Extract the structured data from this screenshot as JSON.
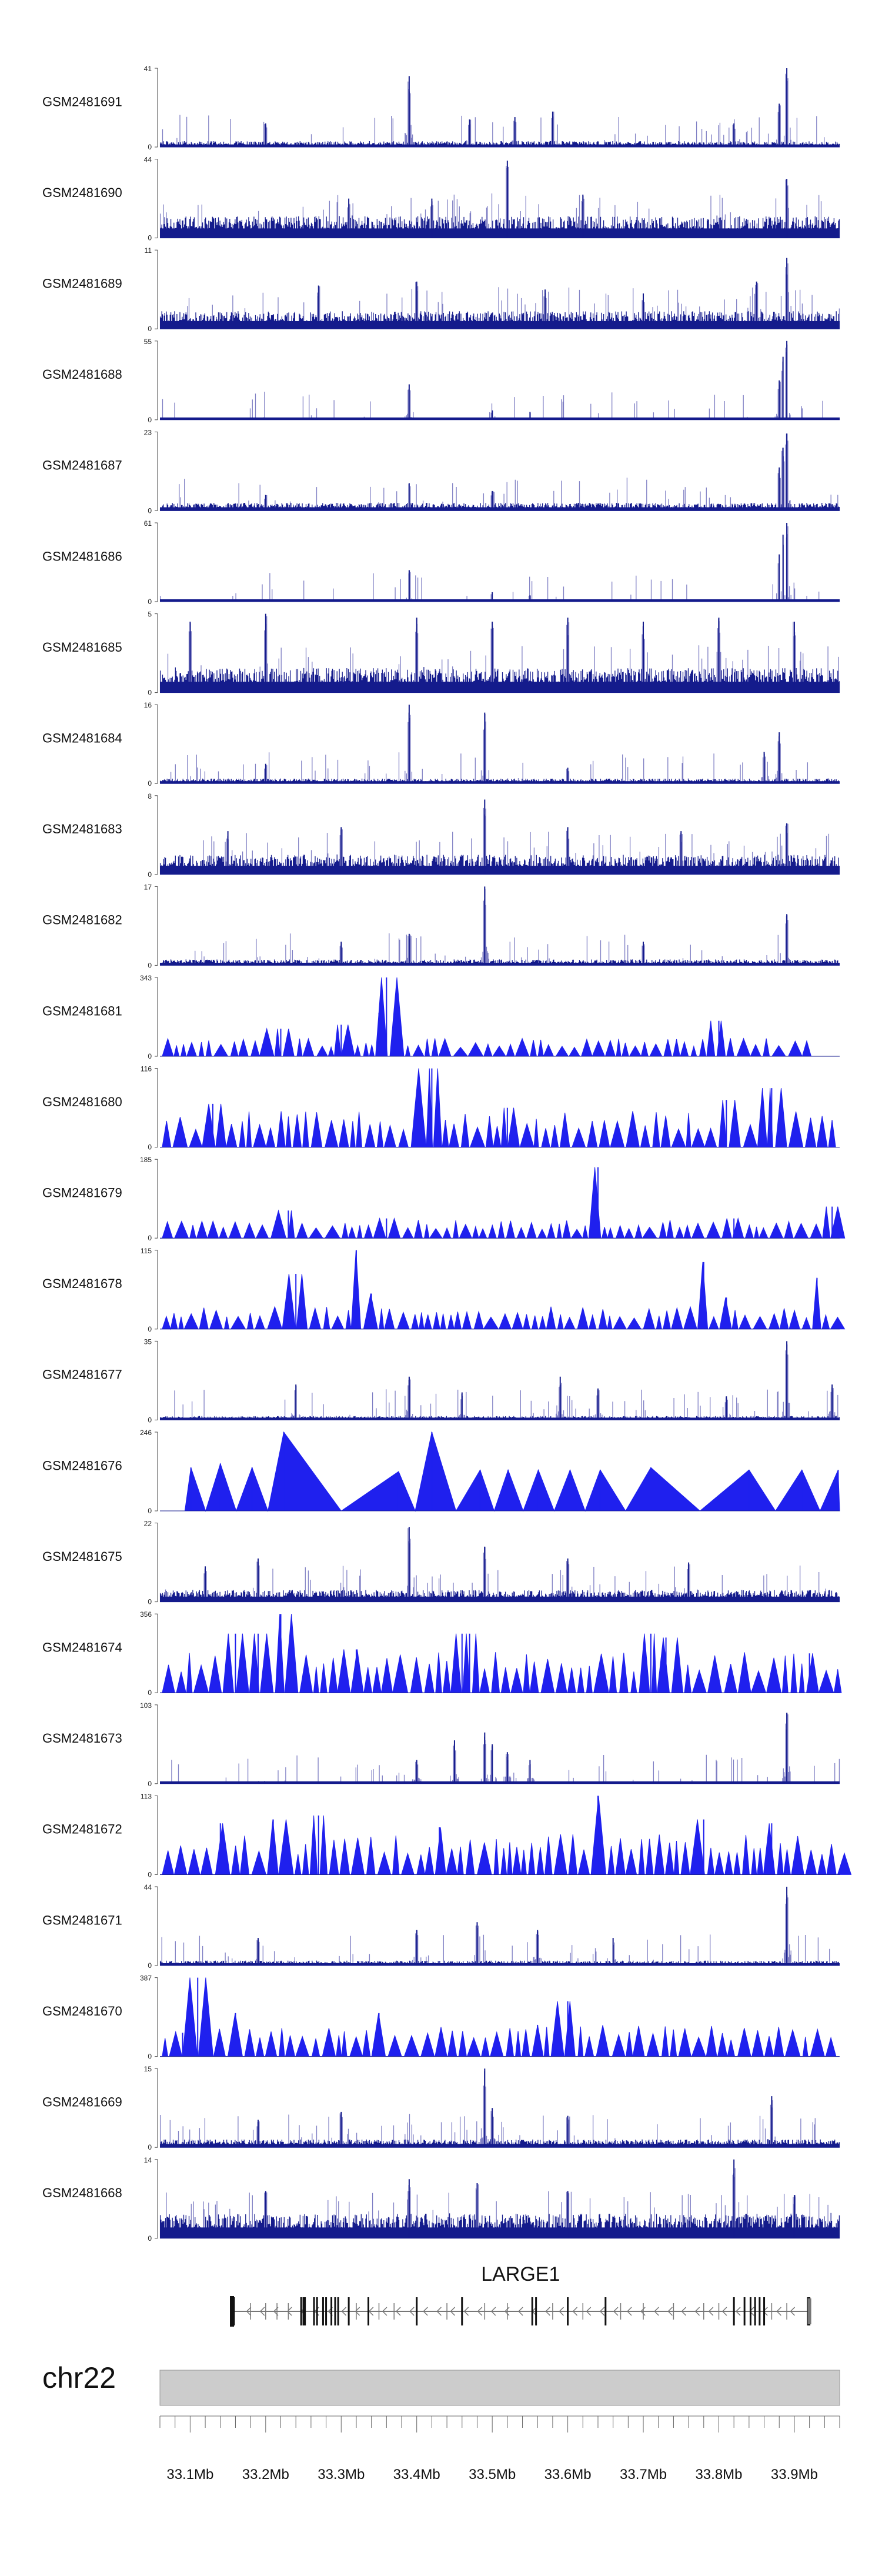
{
  "chart_data": {
    "type": "area",
    "title": "",
    "x_axis": {
      "label": "",
      "min_mb": 33.06,
      "max_mb": 33.96,
      "tick_labels": [
        "33.1Mb",
        "33.2Mb",
        "33.3Mb",
        "33.4Mb",
        "33.5Mb",
        "33.6Mb",
        "33.7Mb",
        "33.8Mb",
        "33.9Mb"
      ]
    },
    "tracks": [
      {
        "name": "GSM2481691",
        "max": 41,
        "min": 0,
        "style": "bars",
        "baseline": 0.06,
        "density": 0.9,
        "peaks": [
          [
            33.39,
            0.9
          ],
          [
            33.89,
            1.0
          ],
          [
            33.88,
            0.55
          ],
          [
            33.58,
            0.45
          ],
          [
            33.47,
            0.35
          ],
          [
            33.53,
            0.38
          ],
          [
            33.2,
            0.3
          ],
          [
            33.82,
            0.3
          ]
        ]
      },
      {
        "name": "GSM2481690",
        "max": 44,
        "min": 0,
        "style": "bars",
        "baseline": 0.22,
        "density": 0.95,
        "peaks": [
          [
            33.52,
            0.98
          ],
          [
            33.89,
            0.75
          ],
          [
            33.62,
            0.55
          ],
          [
            33.31,
            0.5
          ],
          [
            33.42,
            0.5
          ]
        ]
      },
      {
        "name": "GSM2481689",
        "max": 11,
        "min": 0,
        "style": "bars",
        "baseline": 0.18,
        "density": 0.95,
        "peaks": [
          [
            33.89,
            0.9
          ],
          [
            33.85,
            0.6
          ],
          [
            33.4,
            0.6
          ],
          [
            33.57,
            0.5
          ],
          [
            33.27,
            0.55
          ],
          [
            33.7,
            0.45
          ]
        ]
      },
      {
        "name": "GSM2481688",
        "max": 55,
        "min": 0,
        "style": "bars",
        "baseline": 0.02,
        "density": 0.6,
        "peaks": [
          [
            33.89,
            1.0
          ],
          [
            33.885,
            0.8
          ],
          [
            33.88,
            0.5
          ],
          [
            33.39,
            0.45
          ],
          [
            33.5,
            0.12
          ],
          [
            33.55,
            0.1
          ]
        ]
      },
      {
        "name": "GSM2481687",
        "max": 23,
        "min": 0,
        "style": "bars",
        "baseline": 0.08,
        "density": 0.9,
        "peaks": [
          [
            33.89,
            0.98
          ],
          [
            33.885,
            0.8
          ],
          [
            33.88,
            0.55
          ],
          [
            33.39,
            0.35
          ],
          [
            33.5,
            0.25
          ],
          [
            33.2,
            0.2
          ]
        ]
      },
      {
        "name": "GSM2481686",
        "max": 61,
        "min": 0,
        "style": "bars",
        "baseline": 0.02,
        "density": 0.6,
        "peaks": [
          [
            33.89,
            1.0
          ],
          [
            33.885,
            0.85
          ],
          [
            33.88,
            0.6
          ],
          [
            33.39,
            0.4
          ],
          [
            33.5,
            0.12
          ],
          [
            33.55,
            0.08
          ]
        ]
      },
      {
        "name": "GSM2481685",
        "max": 5,
        "min": 0,
        "style": "bars",
        "baseline": 0.25,
        "density": 0.97,
        "peaks": [
          [
            33.2,
            1.0
          ],
          [
            33.4,
            0.95
          ],
          [
            33.6,
            0.95
          ],
          [
            33.8,
            0.95
          ],
          [
            33.1,
            0.9
          ],
          [
            33.5,
            0.9
          ],
          [
            33.7,
            0.9
          ],
          [
            33.9,
            0.9
          ]
        ]
      },
      {
        "name": "GSM2481684",
        "max": 16,
        "min": 0,
        "style": "bars",
        "baseline": 0.05,
        "density": 0.9,
        "peaks": [
          [
            33.39,
            1.0
          ],
          [
            33.49,
            0.9
          ],
          [
            33.88,
            0.65
          ],
          [
            33.86,
            0.4
          ],
          [
            33.2,
            0.25
          ],
          [
            33.6,
            0.2
          ]
        ]
      },
      {
        "name": "GSM2481683",
        "max": 8,
        "min": 0,
        "style": "bars",
        "baseline": 0.2,
        "density": 0.95,
        "peaks": [
          [
            33.49,
            0.95
          ],
          [
            33.3,
            0.6
          ],
          [
            33.6,
            0.6
          ],
          [
            33.89,
            0.65
          ],
          [
            33.15,
            0.55
          ],
          [
            33.75,
            0.55
          ]
        ]
      },
      {
        "name": "GSM2481682",
        "max": 17,
        "min": 0,
        "style": "bars",
        "baseline": 0.06,
        "density": 0.9,
        "peaks": [
          [
            33.49,
            1.0
          ],
          [
            33.89,
            0.65
          ],
          [
            33.39,
            0.4
          ],
          [
            33.3,
            0.3
          ],
          [
            33.7,
            0.3
          ]
        ]
      },
      {
        "name": "GSM2481681",
        "max": 343,
        "min": 0,
        "style": "triangles",
        "peak_height": 0.2,
        "x_end": 33.925,
        "gap_end": 0.0,
        "peaks": [
          [
            33.36,
            1.0
          ],
          [
            33.35,
            0.55
          ],
          [
            33.8,
            0.45
          ],
          [
            33.3,
            0.4
          ],
          [
            33.22,
            0.35
          ]
        ]
      },
      {
        "name": "GSM2481680",
        "max": 116,
        "min": 0,
        "style": "triangles",
        "peak_height": 0.4,
        "x_end": 33.955,
        "gap_end": 0.0,
        "peaks": [
          [
            33.42,
            1.0
          ],
          [
            33.87,
            0.75
          ],
          [
            33.81,
            0.6
          ],
          [
            33.52,
            0.5
          ],
          [
            33.13,
            0.55
          ],
          [
            33.4,
            0.6
          ]
        ]
      },
      {
        "name": "GSM2481679",
        "max": 185,
        "min": 0,
        "style": "triangles",
        "peak_height": 0.2,
        "x_end": 33.96,
        "gap_end": 0.0,
        "peaks": [
          [
            33.64,
            0.9
          ],
          [
            33.95,
            0.4
          ],
          [
            33.23,
            0.35
          ],
          [
            33.36,
            0.25
          ],
          [
            33.82,
            0.25
          ]
        ]
      },
      {
        "name": "GSM2481678",
        "max": 115,
        "min": 0,
        "style": "triangles",
        "peak_height": 0.25,
        "x_end": 33.955,
        "gap_end": 0.0,
        "peaks": [
          [
            33.32,
            1.0
          ],
          [
            33.78,
            0.85
          ],
          [
            33.24,
            0.7
          ],
          [
            33.93,
            0.65
          ],
          [
            33.34,
            0.45
          ],
          [
            33.81,
            0.4
          ]
        ]
      },
      {
        "name": "GSM2481677",
        "max": 35,
        "min": 0,
        "style": "bars",
        "baseline": 0.04,
        "density": 0.9,
        "peaks": [
          [
            33.89,
            1.0
          ],
          [
            33.39,
            0.55
          ],
          [
            33.59,
            0.55
          ],
          [
            33.24,
            0.45
          ],
          [
            33.46,
            0.35
          ],
          [
            33.64,
            0.4
          ],
          [
            33.95,
            0.45
          ],
          [
            33.81,
            0.3
          ]
        ]
      },
      {
        "name": "GSM2481676",
        "max": 246,
        "min": 0,
        "style": "wide-triangles",
        "x_end": 33.96,
        "gap_end": 0.0,
        "peaks": [
          [
            33.101,
            0.55
          ],
          [
            33.14,
            0.6
          ],
          [
            33.182,
            0.55
          ],
          [
            33.224,
            1.0
          ],
          [
            33.376,
            0.5
          ],
          [
            33.42,
            1.0
          ],
          [
            33.484,
            0.52
          ],
          [
            33.521,
            0.52
          ],
          [
            33.561,
            0.52
          ],
          [
            33.603,
            0.52
          ],
          [
            33.643,
            0.52
          ],
          [
            33.71,
            0.55
          ],
          [
            33.84,
            0.52
          ],
          [
            33.91,
            0.52
          ],
          [
            33.958,
            0.52
          ]
        ]
      },
      {
        "name": "GSM2481675",
        "max": 22,
        "min": 0,
        "style": "bars",
        "baseline": 0.12,
        "density": 0.95,
        "peaks": [
          [
            33.39,
            0.95
          ],
          [
            33.49,
            0.7
          ],
          [
            33.19,
            0.55
          ],
          [
            33.6,
            0.55
          ],
          [
            33.76,
            0.5
          ],
          [
            33.12,
            0.45
          ]
        ]
      },
      {
        "name": "GSM2481674",
        "max": 356,
        "min": 0,
        "style": "triangles",
        "peak_height": 0.45,
        "x_end": 33.96,
        "gap_end": 0.0,
        "peaks": [
          [
            33.22,
            1.0
          ],
          [
            33.19,
            0.75
          ],
          [
            33.16,
            0.75
          ],
          [
            33.46,
            0.75
          ],
          [
            33.71,
            0.75
          ],
          [
            33.73,
            0.7
          ],
          [
            33.47,
            0.75
          ],
          [
            33.32,
            0.55
          ],
          [
            33.92,
            0.5
          ]
        ]
      },
      {
        "name": "GSM2481673",
        "max": 103,
        "min": 0,
        "style": "bars",
        "baseline": 0.02,
        "density": 0.85,
        "peaks": [
          [
            33.89,
            0.9
          ],
          [
            33.49,
            0.65
          ],
          [
            33.45,
            0.55
          ],
          [
            33.5,
            0.5
          ],
          [
            33.52,
            0.4
          ],
          [
            33.55,
            0.3
          ],
          [
            33.4,
            0.3
          ]
        ]
      },
      {
        "name": "GSM2481672",
        "max": 113,
        "min": 0,
        "style": "triangles",
        "peak_height": 0.45,
        "x_end": 33.96,
        "gap_end": 0.0,
        "peaks": [
          [
            33.64,
            1.0
          ],
          [
            33.27,
            0.75
          ],
          [
            33.21,
            0.7
          ],
          [
            33.78,
            0.7
          ],
          [
            33.14,
            0.65
          ],
          [
            33.43,
            0.6
          ],
          [
            33.87,
            0.65
          ]
        ]
      },
      {
        "name": "GSM2481671",
        "max": 44,
        "min": 0,
        "style": "bars",
        "baseline": 0.05,
        "density": 0.9,
        "peaks": [
          [
            33.89,
            1.0
          ],
          [
            33.48,
            0.55
          ],
          [
            33.4,
            0.45
          ],
          [
            33.56,
            0.45
          ],
          [
            33.19,
            0.35
          ],
          [
            33.66,
            0.35
          ]
        ]
      },
      {
        "name": "GSM2481670",
        "max": 387,
        "min": 0,
        "style": "triangles",
        "peak_height": 0.35,
        "x_end": 33.945,
        "gap_end": 0.0,
        "peaks": [
          [
            33.11,
            1.0
          ],
          [
            33.6,
            0.7
          ],
          [
            33.16,
            0.55
          ],
          [
            33.35,
            0.55
          ],
          [
            33.09,
            0.3
          ],
          [
            33.56,
            0.4
          ]
        ]
      },
      {
        "name": "GSM2481669",
        "max": 15,
        "min": 0,
        "style": "bars",
        "baseline": 0.08,
        "density": 0.92,
        "peaks": [
          [
            33.49,
            1.0
          ],
          [
            33.87,
            0.65
          ],
          [
            33.3,
            0.45
          ],
          [
            33.6,
            0.4
          ],
          [
            33.19,
            0.35
          ],
          [
            33.5,
            0.5
          ]
        ]
      },
      {
        "name": "GSM2481668",
        "max": 14,
        "min": 0,
        "style": "bars",
        "baseline": 0.25,
        "density": 0.97,
        "peaks": [
          [
            33.82,
            1.0
          ],
          [
            33.39,
            0.75
          ],
          [
            33.48,
            0.7
          ],
          [
            33.2,
            0.6
          ],
          [
            33.6,
            0.6
          ],
          [
            33.9,
            0.55
          ]
        ]
      }
    ],
    "gene": {
      "name": "LARGE1",
      "start_mb": 33.155,
      "end_mb": 33.92,
      "strand": "-",
      "exons_mb": [
        33.156,
        33.158,
        33.247,
        33.25,
        33.252,
        33.264,
        33.268,
        33.276,
        33.28,
        33.287,
        33.292,
        33.296,
        33.31,
        33.336,
        33.4,
        33.46,
        33.553,
        33.558,
        33.6,
        33.65,
        33.82,
        33.834,
        33.842,
        33.848,
        33.854,
        33.86,
        33.918,
        33.92
      ],
      "minor_marks_mb": [
        33.18,
        33.2,
        33.215,
        33.23,
        33.32,
        33.35,
        33.37,
        33.44,
        33.49,
        33.52,
        33.58,
        33.62,
        33.67,
        33.7,
        33.74,
        33.78,
        33.8,
        33.87,
        33.89
      ]
    },
    "ideogram": {
      "chromosome": "chr22",
      "minor_tick_step_mb": 0.02
    },
    "colors": {
      "bar_fill": "#141b8c",
      "bar_spike": "#7f7fc4",
      "triangle_fill": "#1f20ee",
      "track_axis": "#444444",
      "ideogram_fill": "#cccccc",
      "gene_line": "#777777",
      "exon": "#111111"
    }
  }
}
